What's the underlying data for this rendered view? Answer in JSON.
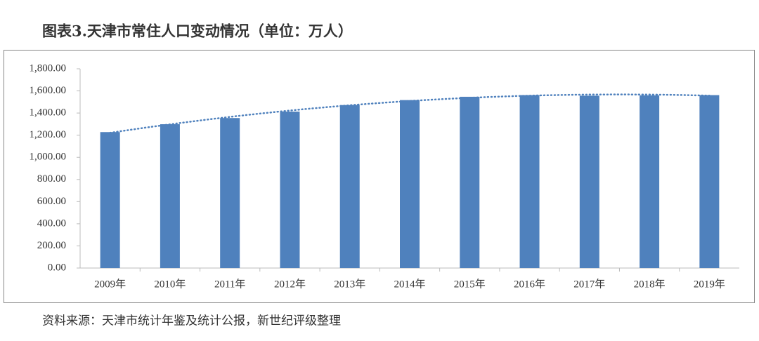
{
  "chart_data": {
    "type": "bar",
    "title": "图表3.天津市常住人口变动情况（单位：万人）",
    "source": "资料来源：天津市统计年鉴及统计公报，新世纪评级整理",
    "categories": [
      "2009年",
      "2010年",
      "2011年",
      "2012年",
      "2013年",
      "2014年",
      "2015年",
      "2016年",
      "2017年",
      "2018年",
      "2019年"
    ],
    "values": [
      1228,
      1299,
      1355,
      1413,
      1472,
      1517,
      1547,
      1562,
      1557,
      1560,
      1562
    ],
    "color": "#4f81bd",
    "trendline": "polynomial",
    "trendline_color": "#4f81bd",
    "ylim": [
      0,
      1800
    ],
    "yticks": [
      {
        "value": 0,
        "label": "0.00"
      },
      {
        "value": 200,
        "label": "200.00"
      },
      {
        "value": 400,
        "label": "400.00"
      },
      {
        "value": 600,
        "label": "600.00"
      },
      {
        "value": 800,
        "label": "800.00"
      },
      {
        "value": 1000,
        "label": "1,000.00"
      },
      {
        "value": 1200,
        "label": "1,200.00"
      },
      {
        "value": 1400,
        "label": "1,400.00"
      },
      {
        "value": 1600,
        "label": "1,600.00"
      },
      {
        "value": 1800,
        "label": "1,800.00"
      }
    ],
    "grid": false
  }
}
